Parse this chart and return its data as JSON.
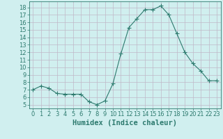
{
  "x": [
    0,
    1,
    2,
    3,
    4,
    5,
    6,
    7,
    8,
    9,
    10,
    11,
    12,
    13,
    14,
    15,
    16,
    17,
    18,
    19,
    20,
    21,
    22,
    23
  ],
  "y": [
    7.0,
    7.5,
    7.2,
    6.5,
    6.4,
    6.4,
    6.4,
    5.4,
    5.0,
    5.5,
    7.8,
    11.8,
    15.3,
    16.5,
    17.7,
    17.7,
    18.2,
    17.0,
    14.5,
    12.0,
    10.5,
    9.5,
    8.2,
    8.2
  ],
  "line_color": "#2d7a6e",
  "marker": "+",
  "marker_size": 4,
  "bg_color": "#d0efef",
  "grid_color": "#c0b8c8",
  "xlabel": "Humidex (Indice chaleur)",
  "ylim": [
    4.5,
    18.8
  ],
  "xlim": [
    -0.5,
    23.5
  ],
  "yticks": [
    5,
    6,
    7,
    8,
    9,
    10,
    11,
    12,
    13,
    14,
    15,
    16,
    17,
    18
  ],
  "xticks": [
    0,
    1,
    2,
    3,
    4,
    5,
    6,
    7,
    8,
    9,
    10,
    11,
    12,
    13,
    14,
    15,
    16,
    17,
    18,
    19,
    20,
    21,
    22,
    23
  ],
  "tick_color": "#2d7a6e",
  "label_fontsize": 7.5,
  "tick_fontsize": 6
}
